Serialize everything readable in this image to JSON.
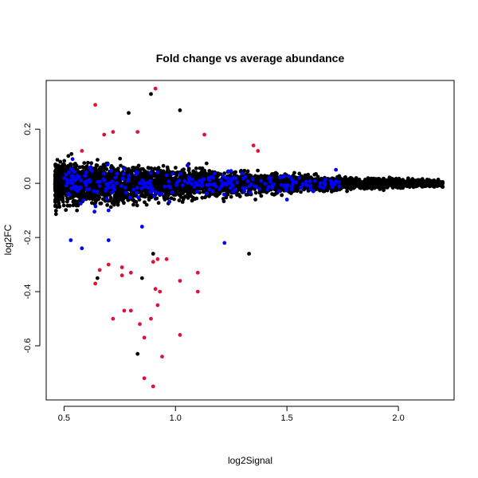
{
  "chart_data": {
    "type": "scatter",
    "title": "Fold change vs average abundance",
    "xlabel": "log2Signal",
    "ylabel": "log2FC",
    "xlim": [
      0.42,
      2.25
    ],
    "ylim": [
      -0.8,
      0.38
    ],
    "xticks": [
      0.5,
      1.0,
      1.5,
      2.0
    ],
    "xtick_labels": [
      "0.5",
      "1.0",
      "1.5",
      "2.0"
    ],
    "yticks": [
      -0.6,
      -0.4,
      -0.2,
      0.0,
      0.2
    ],
    "ytick_labels": [
      "-0.6",
      "-0.4",
      "-0.2",
      "0.0",
      "0.2"
    ],
    "grid": false,
    "legend": "none",
    "colors": {
      "background": "#000000",
      "highlight_a": "#0000ff",
      "highlight_b": "#dc143c"
    },
    "series": [
      {
        "color": "#dc143c",
        "points": [
          [
            0.64,
            0.29
          ],
          [
            0.91,
            0.35
          ],
          [
            0.72,
            0.19
          ],
          [
            0.83,
            0.19
          ],
          [
            1.13,
            0.18
          ],
          [
            1.35,
            0.14
          ],
          [
            1.37,
            0.12
          ],
          [
            0.68,
            0.18
          ],
          [
            0.58,
            0.12
          ],
          [
            0.66,
            -0.32
          ],
          [
            0.64,
            -0.37
          ],
          [
            0.7,
            -0.3
          ],
          [
            0.76,
            -0.31
          ],
          [
            0.76,
            -0.34
          ],
          [
            0.8,
            -0.33
          ],
          [
            0.72,
            -0.5
          ],
          [
            0.77,
            -0.47
          ],
          [
            0.8,
            -0.47
          ],
          [
            0.84,
            -0.52
          ],
          [
            0.86,
            -0.57
          ],
          [
            0.86,
            -0.72
          ],
          [
            0.9,
            -0.75
          ],
          [
            0.89,
            -0.5
          ],
          [
            0.92,
            -0.45
          ],
          [
            0.94,
            -0.64
          ],
          [
            1.02,
            -0.56
          ],
          [
            0.91,
            -0.39
          ],
          [
            0.93,
            -0.4
          ],
          [
            0.9,
            -0.29
          ],
          [
            0.92,
            -0.28
          ],
          [
            0.96,
            -0.28
          ],
          [
            1.02,
            -0.36
          ],
          [
            1.1,
            -0.33
          ],
          [
            1.1,
            -0.4
          ]
        ]
      }
    ],
    "cloud": {
      "description_free_parameters": true,
      "dense_band": {
        "x_range": [
          0.46,
          2.2
        ],
        "y_center": 0.0,
        "spread_at_low_x": 0.09,
        "spread_at_high_x": 0.015
      },
      "sparse_outliers_black": [
        [
          0.89,
          0.33
        ],
        [
          1.02,
          0.27
        ],
        [
          0.79,
          0.26
        ],
        [
          0.83,
          -0.63
        ],
        [
          1.33,
          -0.26
        ],
        [
          0.65,
          -0.35
        ],
        [
          0.85,
          -0.35
        ],
        [
          0.9,
          -0.26
        ]
      ],
      "blue_points_sample": [
        [
          0.53,
          -0.21
        ],
        [
          0.58,
          -0.24
        ],
        [
          0.7,
          -0.21
        ],
        [
          1.22,
          -0.22
        ],
        [
          1.15,
          0.02
        ],
        [
          1.5,
          -0.06
        ],
        [
          1.72,
          0.05
        ],
        [
          0.62,
          0.06
        ],
        [
          0.7,
          -0.1
        ],
        [
          0.85,
          -0.16
        ]
      ]
    }
  }
}
